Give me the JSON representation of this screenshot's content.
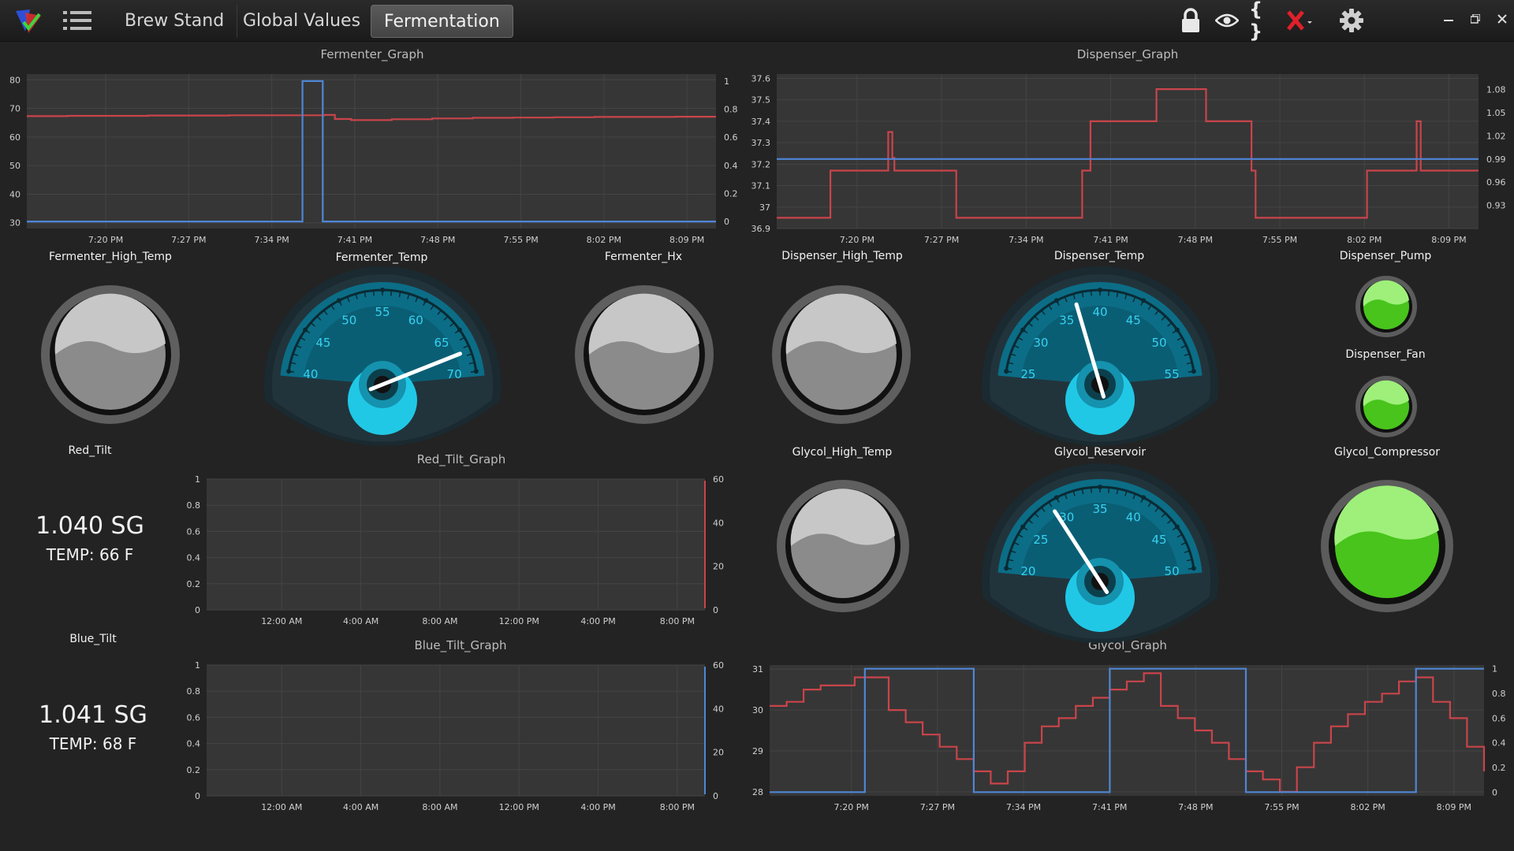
{
  "tabs": [
    {
      "label": "Brew Stand"
    },
    {
      "label": "Global Values"
    },
    {
      "label": "Fermentation"
    }
  ],
  "toolbar": {
    "icons": [
      "lock-icon",
      "eye-icon",
      "braces-icon",
      "close-x-icon",
      "gear-icon"
    ],
    "braces_glyph": "{ }"
  },
  "titles": {
    "fermenter_graph": "Fermenter_Graph",
    "dispenser_graph": "Dispenser_Graph",
    "red_tilt_graph": "Red_Tilt_Graph",
    "blue_tilt_graph": "Blue_Tilt_Graph",
    "glycol_graph": "Glycol_Graph"
  },
  "labels": {
    "fermenter_high_temp": "Fermenter_High_Temp",
    "fermenter_temp": "Fermenter_Temp",
    "fermenter_hx": "Fermenter_Hx",
    "dispenser_high_temp": "Dispenser_High_Temp",
    "dispenser_temp": "Dispenser_Temp",
    "dispenser_pump": "Dispenser_Pump",
    "dispenser_fan": "Dispenser_Fan",
    "red_tilt": "Red_Tilt",
    "glycol_high_temp": "Glycol_High_Temp",
    "glycol_reservoir": "Glycol_Reservoir",
    "glycol_compressor": "Glycol_Compressor",
    "blue_tilt": "Blue_Tilt"
  },
  "readouts": {
    "red_sg": "1.040 SG",
    "red_temp": "TEMP: 66 F",
    "blue_sg": "1.041 SG",
    "blue_temp": "TEMP: 68 F"
  },
  "colors": {
    "red_series": "#c9444a",
    "blue_series": "#4f86d6",
    "accent": "#36d2f2",
    "led_green": "#5ad632"
  },
  "gauges": {
    "fermenter_temp": {
      "min": 40,
      "max": 70,
      "ticks": [
        40,
        45,
        50,
        55,
        60,
        65,
        70
      ],
      "value": 67.5
    },
    "dispenser_temp": {
      "min": 25,
      "max": 55,
      "ticks": [
        25,
        30,
        35,
        40,
        45,
        50,
        55
      ],
      "value": 37
    },
    "glycol_reservoir": {
      "min": 20,
      "max": 50,
      "ticks": [
        20,
        25,
        30,
        35,
        40,
        45,
        50
      ],
      "value": 29
    }
  },
  "indicators": {
    "fermenter_high_temp": "off",
    "fermenter_hx": "off",
    "dispenser_high_temp": "off",
    "glycol_high_temp": "off",
    "dispenser_pump": "on",
    "dispenser_fan": "on",
    "glycol_compressor": "on"
  },
  "chart_data": [
    {
      "name": "Fermenter_Graph",
      "type": "line",
      "x_ticks": [
        "7:20 PM",
        "7:27 PM",
        "7:34 PM",
        "7:41 PM",
        "7:48 PM",
        "7:55 PM",
        "8:02 PM",
        "8:09 PM"
      ],
      "y_left_ticks": [
        30,
        40,
        50,
        60,
        70,
        80
      ],
      "y_left_lim": [
        28,
        82
      ],
      "y_right_ticks": [
        0,
        0.2,
        0.4,
        0.6,
        0.8,
        1
      ],
      "y_right_lim": [
        -0.05,
        1.05
      ],
      "series": [
        {
          "color": "#c9444a",
          "axis": "left",
          "x": [
            0,
            1,
            2,
            3,
            4,
            5,
            6,
            7,
            7.35,
            7.6,
            8,
            9,
            10,
            11,
            12,
            13,
            14,
            15,
            16,
            17
          ],
          "values": [
            67.3,
            67.4,
            67.4,
            67.5,
            67.5,
            67.6,
            67.6,
            67.6,
            67.7,
            66.3,
            65.9,
            66.2,
            66.5,
            66.7,
            66.8,
            66.9,
            67,
            67,
            67.1,
            67.1
          ]
        },
        {
          "color": "#4f86d6",
          "axis": "left_binary",
          "x": [
            0,
            6.8,
            6.8,
            7.3,
            7.3,
            17
          ],
          "values": [
            0,
            0,
            1,
            1,
            0,
            0
          ]
        }
      ],
      "x_range": [
        0,
        17
      ]
    },
    {
      "name": "Dispenser_Graph",
      "type": "line",
      "x_ticks": [
        "7:20 PM",
        "7:27 PM",
        "7:34 PM",
        "7:41 PM",
        "7:48 PM",
        "7:55 PM",
        "8:02 PM",
        "8:09 PM"
      ],
      "y_left_ticks": [
        36.9,
        37,
        37.1,
        37.2,
        37.3,
        37.4,
        37.5,
        37.6
      ],
      "y_left_lim": [
        36.9,
        37.62
      ],
      "y_right_ticks": [
        0.93,
        0.96,
        0.99,
        1.02,
        1.05,
        1.08
      ],
      "y_right_lim": [
        0.9,
        1.1
      ],
      "series": [
        {
          "color": "#c9444a",
          "axis": "left",
          "x": [
            0,
            1.1,
            1.3,
            1.5,
            2.6,
            2.7,
            2.8,
            2.85,
            4.3,
            4.35,
            7.3,
            7.4,
            7.5,
            7.6,
            9.1,
            9.2,
            10.4,
            10.5,
            11.5,
            11.6,
            11.65,
            11.8,
            12,
            12.1,
            14.2,
            14.3,
            14.5,
            15.5,
            15.6,
            17
          ],
          "values": [
            36.95,
            36.95,
            37.17,
            37.17,
            37.17,
            37.35,
            37.23,
            37.17,
            37.17,
            36.95,
            36.95,
            37.17,
            37.17,
            37.4,
            37.4,
            37.55,
            37.4,
            37.4,
            37.17,
            36.95,
            36.95,
            36.95,
            36.95,
            36.95,
            36.95,
            37.17,
            37.17,
            37.4,
            37.17,
            37.17
          ]
        },
        {
          "color": "#4f86d6",
          "axis": "right",
          "x": [
            0,
            17
          ],
          "values": [
            0.99,
            0.99
          ]
        }
      ],
      "x_range": [
        0,
        17
      ]
    },
    {
      "name": "Red_Tilt_Graph",
      "type": "line",
      "x_ticks": [
        "12:00 AM",
        "4:00 AM",
        "8:00 AM",
        "12:00 PM",
        "4:00 PM",
        "8:00 PM"
      ],
      "y_left_ticks": [
        0,
        0.2,
        0.4,
        0.6,
        0.8,
        1
      ],
      "y_right_ticks": [
        0,
        20,
        40,
        60
      ],
      "series": []
    },
    {
      "name": "Blue_Tilt_Graph",
      "type": "line",
      "x_ticks": [
        "12:00 AM",
        "4:00 AM",
        "8:00 AM",
        "12:00 PM",
        "4:00 PM",
        "8:00 PM"
      ],
      "y_left_ticks": [
        0,
        0.2,
        0.4,
        0.6,
        0.8,
        1
      ],
      "y_right_ticks": [
        0,
        20,
        40,
        60
      ],
      "series": []
    },
    {
      "name": "Glycol_Graph",
      "type": "line",
      "x_ticks": [
        "7:20 PM",
        "7:27 PM",
        "7:34 PM",
        "7:41 PM",
        "7:48 PM",
        "7:55 PM",
        "8:02 PM",
        "8:09 PM"
      ],
      "y_left_ticks": [
        28,
        29,
        30,
        31
      ],
      "y_left_lim": [
        27.9,
        31.1
      ],
      "y_right_ticks": [
        0,
        0.2,
        0.4,
        0.6,
        0.8,
        1
      ],
      "y_right_lim": [
        -0.03,
        1.03
      ],
      "series": [
        {
          "color": "#c9444a",
          "axis": "left",
          "x": [
            0,
            0.5,
            1,
            1.5,
            2,
            2.5,
            3,
            3.5,
            4,
            4.5,
            5,
            5.5,
            6,
            6.5,
            7,
            7.5,
            8,
            8.5,
            9,
            9.5,
            10,
            10.5,
            11,
            11.5,
            12,
            12.5,
            13,
            13.5,
            14,
            14.5,
            15,
            15.5,
            16,
            16.5,
            17,
            17.5,
            18,
            18.5,
            19,
            19.5,
            20,
            20.5,
            21
          ],
          "values": [
            30.1,
            30.2,
            30.5,
            30.6,
            30.6,
            30.8,
            30.8,
            30.0,
            29.7,
            29.4,
            29.1,
            28.8,
            28.5,
            28.2,
            28.5,
            29.2,
            29.6,
            29.8,
            30.1,
            30.3,
            30.5,
            30.7,
            30.9,
            30.1,
            29.8,
            29.5,
            29.2,
            28.8,
            28.5,
            28.3,
            28.0,
            28.6,
            29.2,
            29.6,
            29.9,
            30.2,
            30.4,
            30.7,
            30.8,
            30.2,
            29.8,
            29.1,
            28.5
          ]
        },
        {
          "color": "#4f86d6",
          "axis": "right",
          "x": [
            0,
            2.8,
            2.8,
            6.0,
            6.0,
            10.0,
            10.0,
            14.0,
            14.0,
            19.0,
            19.0,
            21
          ],
          "values": [
            0,
            0,
            1,
            1,
            0,
            0,
            1,
            1,
            0,
            0,
            1,
            1
          ]
        }
      ],
      "x_range": [
        0,
        21
      ]
    }
  ]
}
